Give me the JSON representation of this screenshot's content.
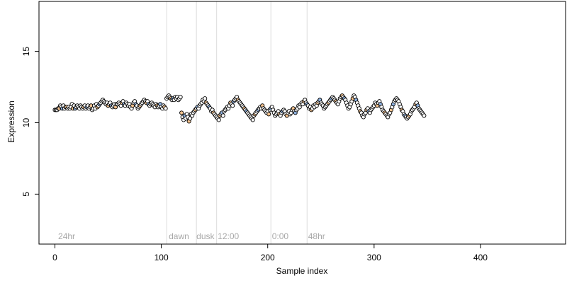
{
  "chart_data": {
    "type": "scatter",
    "title": "",
    "xlabel": "Sample index",
    "ylabel": "Expression",
    "xlim": [
      -15,
      480
    ],
    "ylim": [
      1.5,
      18.5
    ],
    "x_ticks": [
      0,
      100,
      200,
      300,
      400
    ],
    "y_ticks": [
      5,
      10,
      15
    ],
    "grid": false,
    "legend": "none",
    "vlines": [
      105,
      133,
      152,
      203,
      237
    ],
    "annotations": [
      {
        "text": "24hr",
        "x": 3
      },
      {
        "text": "dawn",
        "x": 107
      },
      {
        "text": "dusk",
        "x": 133
      },
      {
        "text": "12:00",
        "x": 153
      },
      {
        "text": "0:00",
        "x": 204
      },
      {
        "text": "48hr",
        "x": 238
      }
    ],
    "point_colors": {
      "default": "#ffffff",
      "day": "#f3c28e",
      "night": "#8fb2e0"
    },
    "y": [
      10.9,
      10.9,
      10.9,
      11.0,
      11.0,
      11.2,
      11.1,
      11.0,
      11.2,
      11.0,
      11.1,
      11.1,
      11.0,
      11.1,
      11.0,
      11.1,
      11.3,
      11.0,
      11.2,
      11.0,
      11.1,
      11.2,
      11.1,
      11.0,
      11.2,
      11.1,
      11.0,
      11.1,
      11.2,
      11.0,
      11.1,
      11.2,
      11.0,
      11.1,
      11.2,
      10.9,
      11.0,
      11.2,
      11.0,
      11.3,
      11.1,
      11.2,
      11.3,
      11.4,
      11.5,
      11.6,
      11.5,
      11.4,
      11.3,
      11.4,
      11.2,
      11.3,
      11.4,
      11.2,
      11.1,
      11.2,
      11.3,
      11.1,
      11.3,
      11.3,
      11.4,
      11.3,
      11.2,
      11.4,
      11.5,
      11.3,
      11.2,
      11.4,
      11.3,
      11.2,
      11.3,
      11.1,
      11.0,
      11.2,
      11.4,
      11.5,
      11.3,
      11.2,
      11.0,
      11.1,
      11.2,
      11.3,
      11.4,
      11.5,
      11.6,
      11.5,
      11.4,
      11.5,
      11.3,
      11.2,
      11.3,
      11.4,
      11.3,
      11.2,
      11.1,
      11.3,
      11.2,
      11.1,
      11.2,
      11.3,
      11.1,
      11.0,
      11.2,
      11.1,
      11.0,
      11.7,
      11.8,
      11.9,
      11.8,
      11.7,
      11.6,
      11.7,
      11.6,
      11.8,
      11.7,
      11.8,
      11.6,
      11.7,
      11.8,
      10.7,
      10.4,
      10.2,
      10.5,
      10.3,
      10.6,
      10.4,
      10.1,
      10.3,
      10.6,
      10.5,
      10.7,
      10.8,
      10.9,
      11.0,
      11.1,
      11.0,
      11.2,
      11.3,
      11.4,
      11.6,
      11.5,
      11.7,
      11.4,
      11.3,
      11.2,
      11.1,
      11.0,
      10.8,
      10.9,
      10.7,
      10.6,
      10.5,
      10.4,
      10.3,
      10.2,
      10.5,
      10.6,
      10.7,
      10.5,
      10.8,
      10.9,
      11.0,
      11.1,
      11.0,
      11.2,
      11.4,
      11.3,
      11.2,
      11.5,
      11.6,
      11.7,
      11.8,
      11.6,
      11.5,
      11.4,
      11.3,
      11.2,
      11.1,
      11.0,
      10.9,
      10.8,
      10.7,
      10.6,
      10.5,
      10.4,
      10.3,
      10.2,
      10.5,
      10.6,
      10.7,
      10.8,
      10.9,
      11.0,
      11.1,
      11.0,
      11.2,
      11.0,
      10.9,
      10.8,
      10.7,
      10.8,
      10.6,
      10.9,
      11.0,
      11.1,
      10.9,
      10.7,
      10.5,
      10.6,
      10.7,
      10.8,
      10.6,
      10.5,
      10.7,
      10.8,
      10.9,
      10.8,
      10.6,
      10.5,
      10.7,
      10.8,
      10.6,
      10.7,
      10.9,
      11.0,
      10.8,
      10.7,
      10.9,
      11.0,
      11.2,
      11.1,
      11.3,
      11.4,
      11.3,
      11.5,
      11.6,
      11.4,
      11.3,
      11.2,
      11.0,
      11.1,
      10.9,
      11.0,
      11.2,
      11.1,
      11.3,
      11.2,
      11.4,
      11.5,
      11.6,
      11.4,
      11.3,
      11.2,
      11.0,
      11.1,
      11.2,
      11.3,
      11.4,
      11.5,
      11.6,
      11.7,
      11.8,
      11.7,
      11.6,
      11.5,
      11.4,
      11.3,
      11.5,
      11.7,
      11.8,
      11.9,
      11.8,
      11.7,
      11.6,
      11.4,
      11.2,
      11.0,
      11.1,
      11.3,
      11.5,
      11.7,
      11.9,
      11.8,
      11.6,
      11.4,
      11.2,
      11.0,
      10.8,
      10.7,
      10.5,
      10.4,
      10.6,
      10.7,
      10.9,
      11.0,
      10.8,
      10.7,
      10.9,
      11.0,
      11.1,
      11.2,
      11.4,
      11.3,
      11.2,
      11.4,
      11.5,
      11.3,
      11.1,
      10.9,
      10.8,
      10.7,
      10.6,
      10.5,
      10.4,
      10.6,
      10.7,
      10.9,
      11.1,
      11.3,
      11.5,
      11.6,
      11.7,
      11.6,
      11.5,
      11.3,
      11.1,
      10.9,
      10.8,
      10.6,
      10.5,
      10.4,
      10.3,
      10.4,
      10.5,
      10.6,
      10.8,
      10.9,
      11.0,
      11.1,
      11.3,
      11.4,
      11.2,
      11.0,
      10.9,
      10.8,
      10.7,
      10.6,
      10.5
    ]
  }
}
